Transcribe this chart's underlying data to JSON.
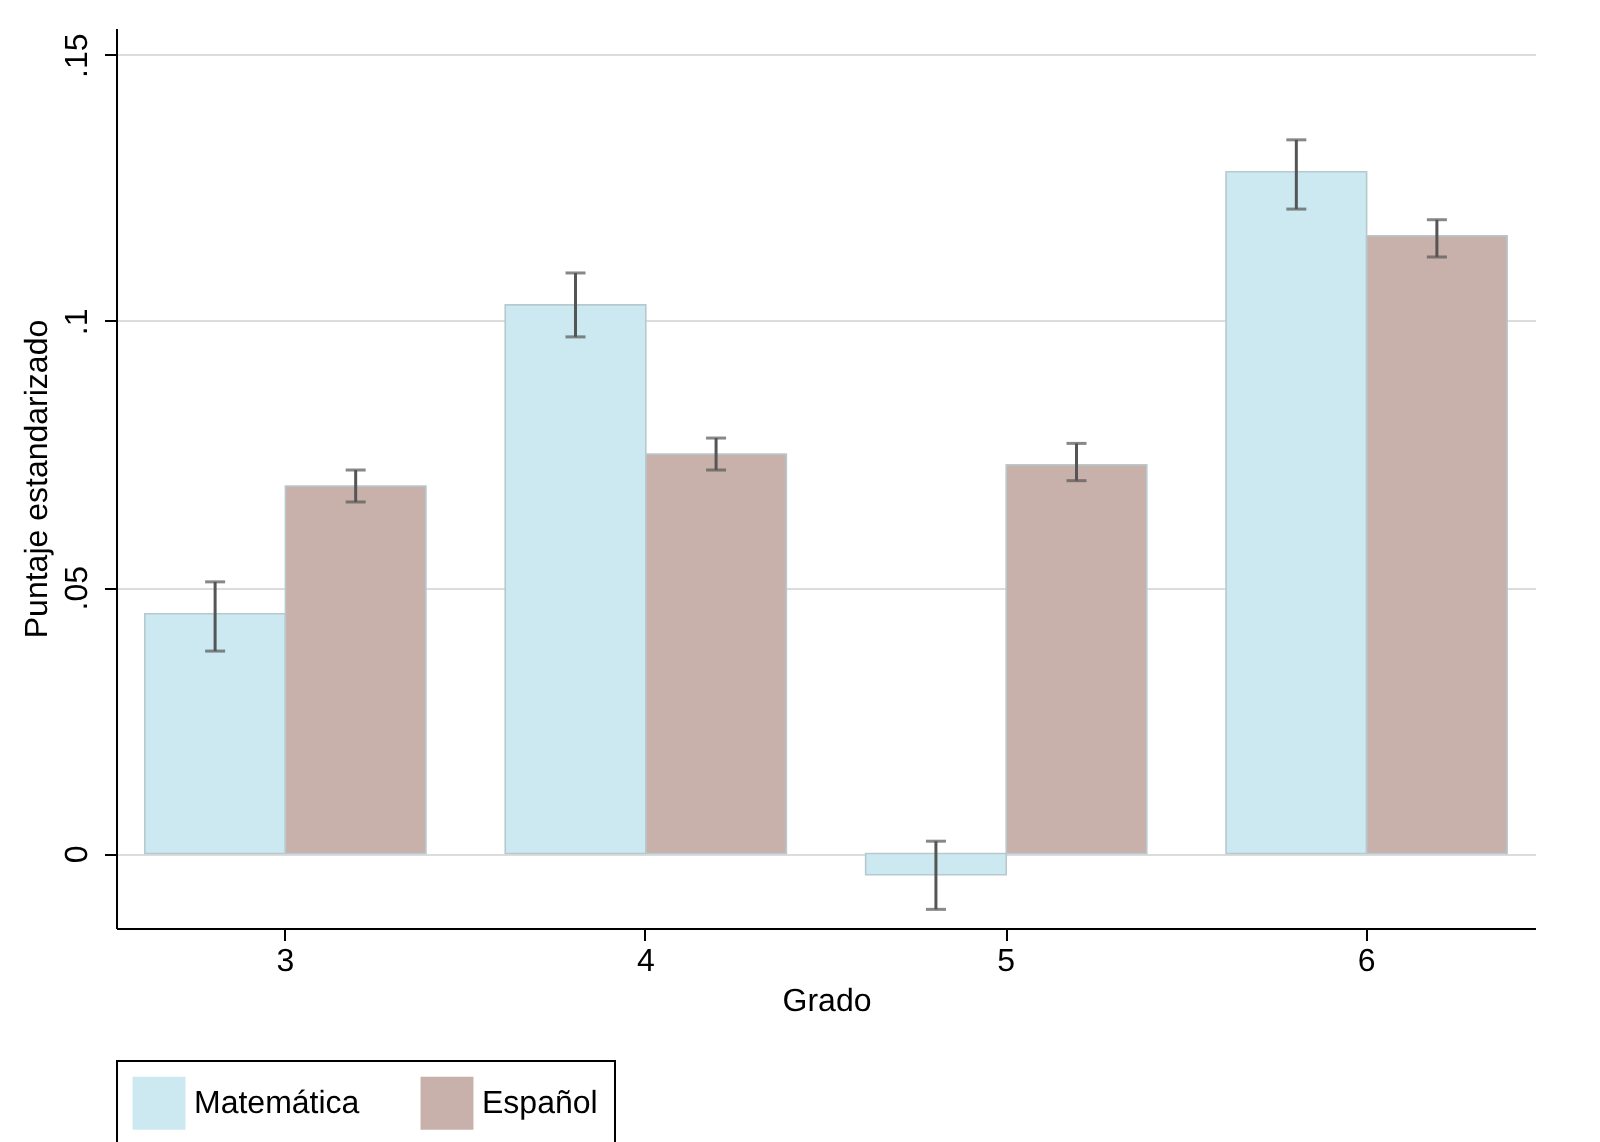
{
  "chart_data": {
    "type": "bar",
    "xlabel": "Grado",
    "ylabel": "Puntaje estandarizado",
    "categories": [
      "3",
      "4",
      "5",
      "6"
    ],
    "series": [
      {
        "name": "Matemática",
        "color": "#cce8f0",
        "values": [
          0.045,
          0.103,
          -0.004,
          0.128
        ],
        "errors": [
          [
            0.038,
            0.051
          ],
          [
            0.097,
            0.109
          ],
          [
            -0.0105,
            0.0023
          ],
          [
            0.121,
            0.134
          ]
        ]
      },
      {
        "name": "Español",
        "color": "#c9b1ab",
        "values": [
          0.069,
          0.075,
          0.073,
          0.116
        ],
        "errors": [
          [
            0.066,
            0.072
          ],
          [
            0.072,
            0.078
          ],
          [
            0.07,
            0.077
          ],
          [
            0.112,
            0.119
          ]
        ]
      }
    ],
    "ylim": [
      -0.014,
      0.155
    ],
    "yticks": [
      0,
      {
        "value": 0.05,
        "label": ".05"
      },
      {
        "value": 0.1,
        "label": ".1"
      },
      {
        "value": 0.15,
        "label": ".15"
      }
    ],
    "grid": "y",
    "legend": "bottom"
  }
}
